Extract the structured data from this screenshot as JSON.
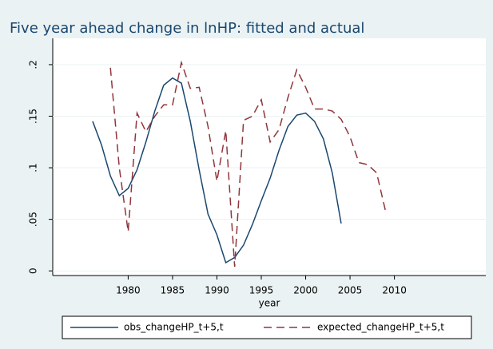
{
  "chart_data": {
    "type": "line",
    "title": "Five year ahead change in lnHP: fitted and actual",
    "x_label": "year",
    "x": [
      1976,
      1977,
      1978,
      1979,
      1980,
      1981,
      1982,
      1983,
      1984,
      1985,
      1986,
      1987,
      1988,
      1989,
      1990,
      1991,
      1992,
      1993,
      1994,
      1995,
      1996,
      1997,
      1998,
      1999,
      2000,
      2001,
      2002,
      2003,
      2004,
      2005,
      2006,
      2007,
      2008,
      2009
    ],
    "series": [
      {
        "name": "obs_changeHP_t+5,t",
        "color": "#1a476f",
        "dash": "solid",
        "values": [
          0.145,
          0.122,
          0.092,
          0.073,
          0.08,
          0.098,
          0.125,
          0.155,
          0.18,
          0.187,
          0.182,
          0.145,
          0.098,
          0.055,
          0.035,
          0.008,
          0.013,
          0.025,
          0.045,
          0.068,
          0.09,
          0.117,
          0.14,
          0.151,
          0.153,
          0.145,
          0.128,
          0.095,
          0.046,
          null,
          null,
          null,
          null,
          null
        ]
      },
      {
        "name": "expected_changeHP_t+5,t",
        "color": "#90353b",
        "dash": "dashed",
        "values": [
          null,
          null,
          0.197,
          0.1,
          0.038,
          0.153,
          0.135,
          0.15,
          0.161,
          0.161,
          0.202,
          0.177,
          0.178,
          0.14,
          0.087,
          0.136,
          0.004,
          0.146,
          0.15,
          0.166,
          0.125,
          0.137,
          0.168,
          0.195,
          0.178,
          0.157,
          0.157,
          0.155,
          0.147,
          0.13,
          0.105,
          0.103,
          0.095,
          0.058
        ]
      }
    ],
    "xlim": [
      1971.5,
      2020.3
    ],
    "xticks": [
      1980,
      1985,
      1990,
      1995,
      2000,
      2005,
      2010
    ],
    "ylim": [
      -0.0045,
      0.2255
    ],
    "yticks": [
      0,
      {
        "value": 0.05,
        "label": ".05"
      },
      {
        "value": 0.1,
        "label": ".1"
      },
      {
        "value": 0.15,
        "label": ".15"
      },
      {
        "value": 0.2,
        "label": ".2"
      }
    ],
    "grid": true,
    "legend": "bottom"
  }
}
